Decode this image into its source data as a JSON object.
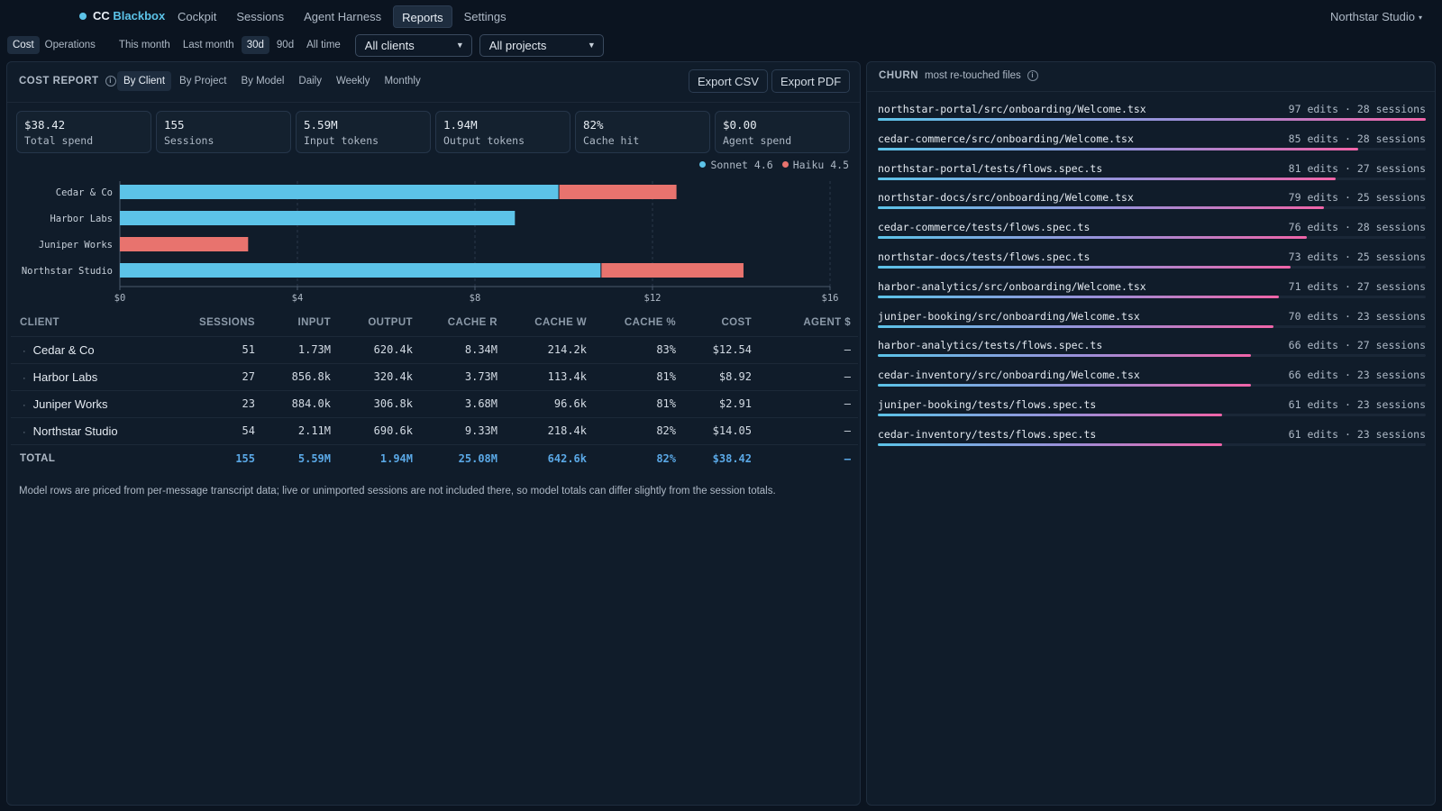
{
  "app": {
    "brand_prefix": "CC",
    "brand_accent": "Blackbox",
    "workspace": "Northstar Studio"
  },
  "nav": {
    "tabs": [
      {
        "label": "Cockpit"
      },
      {
        "label": "Sessions"
      },
      {
        "label": "Agent Harness"
      },
      {
        "label": "Reports",
        "active": true
      },
      {
        "label": "Settings"
      }
    ]
  },
  "filters": {
    "modes": [
      "Cost",
      "Operations"
    ],
    "ranges": [
      "This month",
      "Last month",
      "30d",
      "90d",
      "All time"
    ],
    "active_range": "30d",
    "client_select": "All clients",
    "project_select": "All projects"
  },
  "cost_report": {
    "title": "COST REPORT",
    "views": [
      "By Client",
      "By Project",
      "By Model",
      "Daily",
      "Weekly",
      "Monthly"
    ],
    "active_view": "By Client",
    "export_csv": "Export CSV",
    "export_pdf": "Export PDF",
    "stats": [
      {
        "value": "$38.42",
        "label": "Total spend"
      },
      {
        "value": "155",
        "label": "Sessions"
      },
      {
        "value": "5.59M",
        "label": "Input tokens"
      },
      {
        "value": "1.94M",
        "label": "Output tokens"
      },
      {
        "value": "82%",
        "label": "Cache hit"
      },
      {
        "value": "$0.00",
        "label": "Agent spend"
      }
    ],
    "table": {
      "headers": [
        "CLIENT",
        "SESSIONS",
        "INPUT",
        "OUTPUT",
        "CACHE R",
        "CACHE W",
        "CACHE %",
        "COST",
        "AGENT $"
      ],
      "rows": [
        [
          "Cedar & Co",
          "51",
          "1.73M",
          "620.4k",
          "8.34M",
          "214.2k",
          "83%",
          "$12.54",
          "—"
        ],
        [
          "Harbor Labs",
          "27",
          "856.8k",
          "320.4k",
          "3.73M",
          "113.4k",
          "81%",
          "$8.92",
          "—"
        ],
        [
          "Juniper Works",
          "23",
          "884.0k",
          "306.8k",
          "3.68M",
          "96.6k",
          "81%",
          "$2.91",
          "—"
        ],
        [
          "Northstar Studio",
          "54",
          "2.11M",
          "690.6k",
          "9.33M",
          "218.4k",
          "82%",
          "$14.05",
          "—"
        ]
      ],
      "total": [
        "TOTAL",
        "155",
        "5.59M",
        "1.94M",
        "25.08M",
        "642.6k",
        "82%",
        "$38.42",
        "—"
      ]
    },
    "footnote": "Model rows are priced from per-message transcript data; live or unimported sessions are not included there, so model totals can differ slightly from the session totals."
  },
  "chart_data": {
    "type": "bar",
    "orientation": "horizontal",
    "stacked": true,
    "categories": [
      "Cedar & Co",
      "Harbor Labs",
      "Juniper Works",
      "Northstar Studio"
    ],
    "series": [
      {
        "name": "Sonnet 4.6",
        "color": "#5cc3e8",
        "values": [
          9.9,
          8.92,
          0,
          10.85
        ]
      },
      {
        "name": "Haiku 4.5",
        "color": "#e8736e",
        "values": [
          2.64,
          0,
          2.91,
          3.2
        ]
      }
    ],
    "x_ticks": [
      "$0",
      "$4",
      "$8",
      "$12",
      "$16"
    ],
    "xlim": [
      0,
      16
    ],
    "legend": "top-right",
    "grid": true
  },
  "churn": {
    "title": "CHURN",
    "subtitle": "most re-touched files",
    "files": [
      {
        "path": "northstar-portal/src/onboarding/Welcome.tsx",
        "edits": 97,
        "sessions": 28,
        "meta": "97 edits · 28 sessions"
      },
      {
        "path": "cedar-commerce/src/onboarding/Welcome.tsx",
        "edits": 85,
        "sessions": 28,
        "meta": "85 edits · 28 sessions"
      },
      {
        "path": "northstar-portal/tests/flows.spec.ts",
        "edits": 81,
        "sessions": 27,
        "meta": "81 edits · 27 sessions"
      },
      {
        "path": "northstar-docs/src/onboarding/Welcome.tsx",
        "edits": 79,
        "sessions": 25,
        "meta": "79 edits · 25 sessions"
      },
      {
        "path": "cedar-commerce/tests/flows.spec.ts",
        "edits": 76,
        "sessions": 28,
        "meta": "76 edits · 28 sessions"
      },
      {
        "path": "northstar-docs/tests/flows.spec.ts",
        "edits": 73,
        "sessions": 25,
        "meta": "73 edits · 25 sessions"
      },
      {
        "path": "harbor-analytics/src/onboarding/Welcome.tsx",
        "edits": 71,
        "sessions": 27,
        "meta": "71 edits · 27 sessions"
      },
      {
        "path": "juniper-booking/src/onboarding/Welcome.tsx",
        "edits": 70,
        "sessions": 23,
        "meta": "70 edits · 23 sessions"
      },
      {
        "path": "harbor-analytics/tests/flows.spec.ts",
        "edits": 66,
        "sessions": 27,
        "meta": "66 edits · 27 sessions"
      },
      {
        "path": "cedar-inventory/src/onboarding/Welcome.tsx",
        "edits": 66,
        "sessions": 23,
        "meta": "66 edits · 23 sessions"
      },
      {
        "path": "juniper-booking/tests/flows.spec.ts",
        "edits": 61,
        "sessions": 23,
        "meta": "61 edits · 23 sessions"
      },
      {
        "path": "cedar-inventory/tests/flows.spec.ts",
        "edits": 61,
        "sessions": 23,
        "meta": "61 edits · 23 sessions"
      }
    ]
  }
}
